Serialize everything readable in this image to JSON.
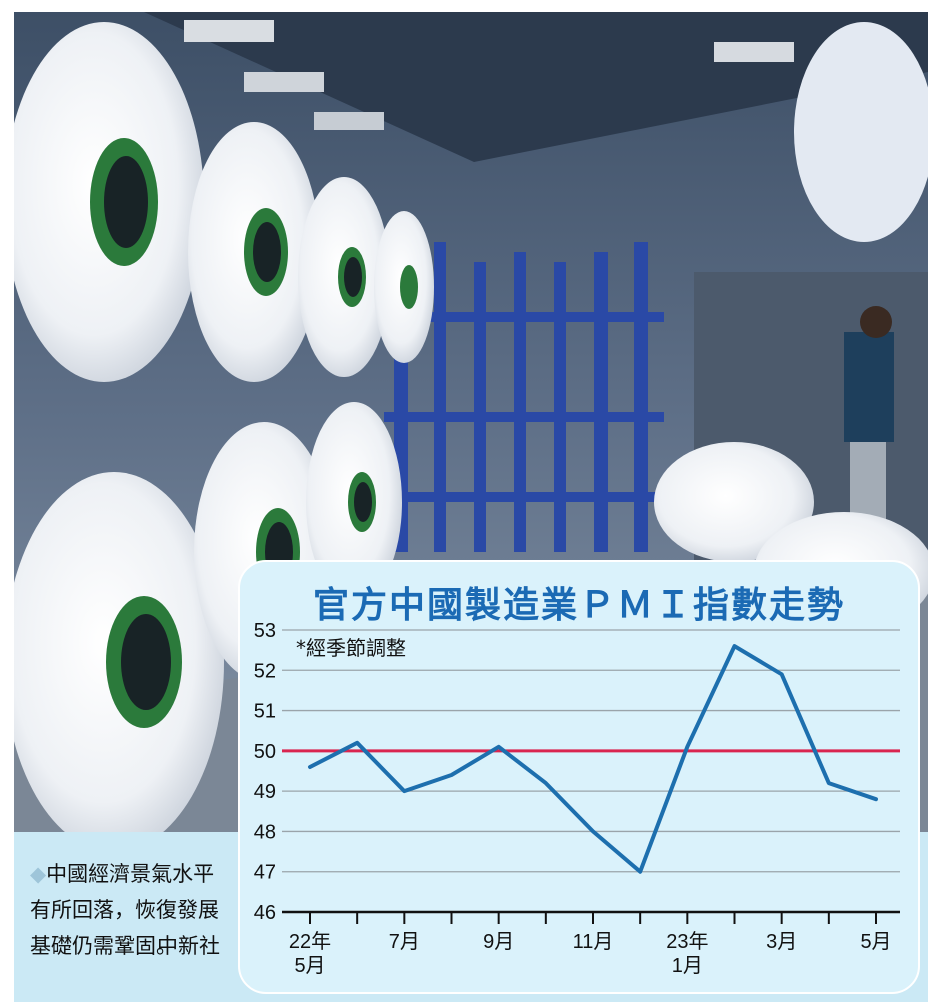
{
  "caption": {
    "text": "中國經濟景氣水平有所回落，恢復發展基礎仍需鞏固。",
    "credit": "中新社"
  },
  "chart_data": {
    "type": "line",
    "title": "官方中國製造業ＰＭＩ指數走勢",
    "note": "*經季節調整",
    "x": [
      "2022-05",
      "2022-06",
      "2022-07",
      "2022-08",
      "2022-09",
      "2022-10",
      "2022-11",
      "2022-12",
      "2023-01",
      "2023-02",
      "2023-03",
      "2023-04",
      "2023-05"
    ],
    "series": [
      {
        "values": [
          49.6,
          50.2,
          49.0,
          49.4,
          50.1,
          49.2,
          48.0,
          47.0,
          50.1,
          52.6,
          51.9,
          49.2,
          48.8
        ]
      }
    ],
    "ylim": [
      46,
      53
    ],
    "yticks": [
      46,
      47,
      48,
      49,
      50,
      51,
      52,
      53
    ],
    "xtick_labels": [
      {
        "index": 0,
        "line1": "22年",
        "line2": "5月"
      },
      {
        "index": 2,
        "line1": "7月",
        "line2": ""
      },
      {
        "index": 4,
        "line1": "9月",
        "line2": ""
      },
      {
        "index": 6,
        "line1": "11月",
        "line2": ""
      },
      {
        "index": 8,
        "line1": "23年",
        "line2": "1月"
      },
      {
        "index": 10,
        "line1": "3月",
        "line2": ""
      },
      {
        "index": 12,
        "line1": "5月",
        "line2": ""
      }
    ],
    "reference_line": 50,
    "grid": true,
    "colors": {
      "line": "#1d6fae",
      "reference": "#d9254f",
      "grid": "#9aa4aa"
    }
  }
}
